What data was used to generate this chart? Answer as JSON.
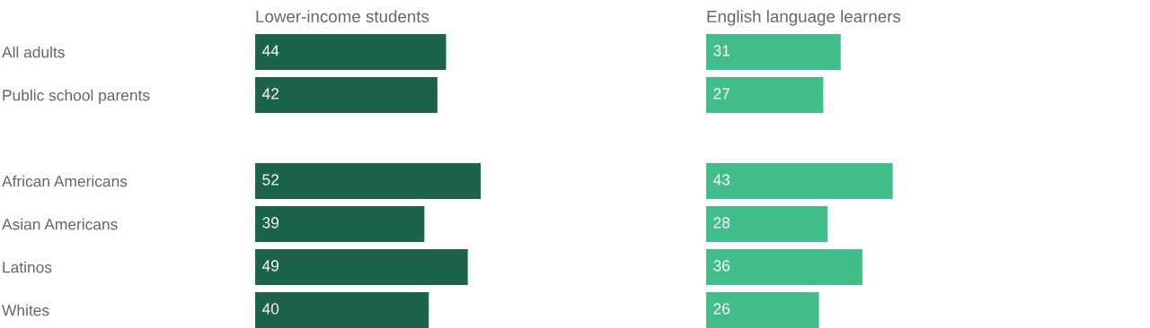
{
  "chart_data": [
    {
      "type": "bar",
      "orientation": "horizontal",
      "title": "Lower-income students",
      "categories": [
        "All adults",
        "Public school parents",
        null,
        "African Americans",
        "Asian Americans",
        "Latinos",
        "Whites"
      ],
      "values": [
        44,
        42,
        null,
        52,
        39,
        49,
        40
      ],
      "color": "#1b6349",
      "data_labels": true,
      "grid": false
    },
    {
      "type": "bar",
      "orientation": "horizontal",
      "title": "English language learners",
      "categories": [
        null,
        null,
        null,
        null,
        null,
        null,
        null
      ],
      "values": [
        31,
        27,
        null,
        43,
        28,
        36,
        26
      ],
      "color": "#43bd8a",
      "data_labels": true,
      "grid": false
    }
  ]
}
